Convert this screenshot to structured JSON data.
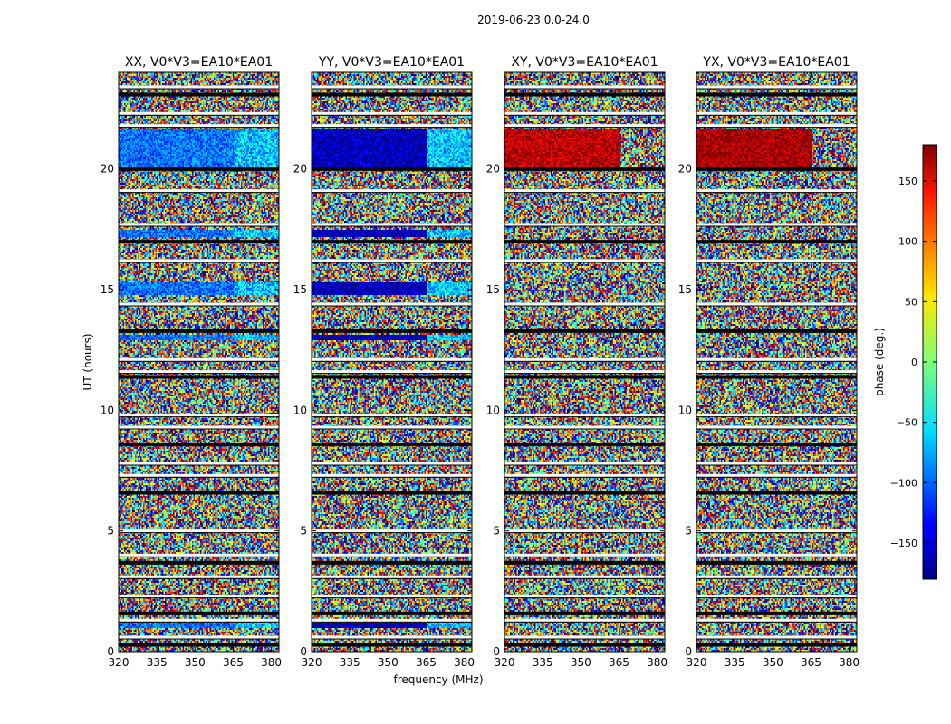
{
  "chart_data": {
    "type": "heatmap",
    "suptitle": "2019-06-23 0.0-24.0",
    "xlabel": "frequency (MHz)",
    "ylabel": "UT (hours)",
    "xlim": [
      320,
      383
    ],
    "ylim": [
      0,
      24
    ],
    "x_ticks": [
      320,
      335,
      350,
      365,
      380
    ],
    "y_ticks": [
      0,
      5,
      10,
      15,
      20
    ],
    "colorbar": {
      "label": "phase (deg.)",
      "range": [
        -180,
        180
      ],
      "ticks": [
        150,
        100,
        50,
        0,
        -50,
        -100,
        -150
      ],
      "tick_labels": [
        "150",
        "100",
        "50",
        "0",
        "−50",
        "−100",
        "−150"
      ],
      "colormap": "jet"
    },
    "panels": [
      {
        "title": "XX, V0*V3=EA10*EA01",
        "coherent_phase_deg": -95,
        "coherent_tint": "#1f7fff"
      },
      {
        "title": "YY, V0*V3=EA10*EA01",
        "coherent_phase_deg": -160,
        "coherent_tint": "#0a1cff"
      },
      {
        "title": "XY, V0*V3=EA10*EA01",
        "coherent_phase_deg": 160,
        "coherent_tint": "#c8200e"
      },
      {
        "title": "YX, V0*V3=EA10*EA01",
        "coherent_phase_deg": 170,
        "coherent_tint": "#b01008"
      }
    ],
    "coherent_intervals_ut": [
      [
        20.0,
        21.7
      ],
      [
        14.8,
        15.3
      ],
      [
        12.9,
        13.1
      ],
      [
        17.2,
        17.5
      ],
      [
        1.0,
        1.2
      ]
    ],
    "flagged_gaps_ut": [
      0.3,
      0.6,
      1.3,
      1.6,
      2.3,
      3.1,
      3.7,
      4.0,
      5.0,
      6.6,
      7.3,
      7.8,
      8.6,
      9.3,
      9.8,
      11.4,
      11.6,
      12.1,
      13.3,
      14.4,
      16.2,
      17.0,
      17.7,
      19.1,
      20.0,
      21.8,
      22.3,
      23.1,
      23.4
    ]
  }
}
